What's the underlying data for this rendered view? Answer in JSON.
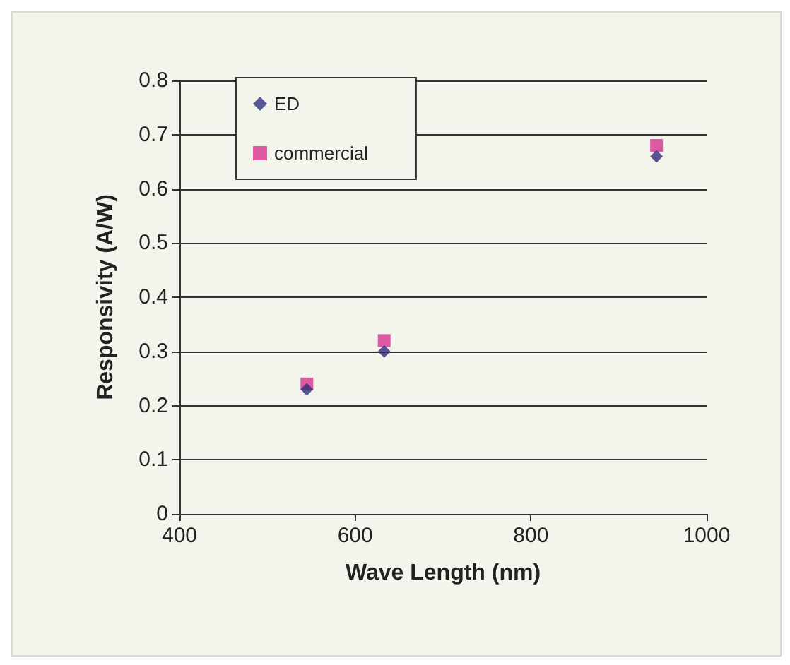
{
  "chart_data": {
    "type": "scatter",
    "xlabel": "Wave Length (nm)",
    "ylabel": "Responsivity (A/W)",
    "x": [
      545,
      633,
      943
    ],
    "series": [
      {
        "name": "ED",
        "color": "#2e2e7a",
        "marker": "diamond",
        "values": [
          0.23,
          0.3,
          0.66
        ]
      },
      {
        "name": "commercial",
        "color": "#d6338f",
        "marker": "square",
        "values": [
          0.24,
          0.32,
          0.68
        ]
      }
    ],
    "xlim": [
      400,
      1000
    ],
    "xticks": [
      400,
      600,
      800,
      1000
    ],
    "ylim": [
      0,
      0.8
    ],
    "yticks": [
      0,
      0.1,
      0.2,
      0.3,
      0.4,
      0.5,
      0.6,
      0.7,
      0.8
    ],
    "grid": "y",
    "legend": "top left"
  }
}
